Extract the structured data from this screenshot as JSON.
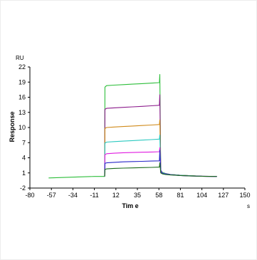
{
  "chart_data": {
    "type": "line",
    "y_unit_label": "RU",
    "ylabel": "Response",
    "xlabel": "Tim e",
    "x_unit_label": "s",
    "xlim": [
      -80,
      150
    ],
    "ylim": [
      -2,
      22
    ],
    "x_ticks": [
      -80,
      -57,
      -34,
      -11,
      12,
      35,
      58,
      81,
      104,
      127,
      150
    ],
    "y_ticks": [
      -2,
      1,
      4,
      7,
      10,
      13,
      16,
      19,
      22
    ],
    "grid": false,
    "series": [
      {
        "color": "#2dbe3a",
        "x": [
          -60,
          -11,
          0,
          0.3,
          2,
          10,
          20,
          30,
          40,
          50,
          58.5,
          59,
          60,
          61,
          62,
          65,
          70,
          80,
          90,
          104,
          120
        ],
        "y": [
          0,
          0.3,
          0.3,
          18.0,
          18.3,
          18.4,
          18.5,
          18.6,
          18.7,
          18.8,
          18.9,
          20.5,
          1.6,
          1.2,
          1.1,
          0.9,
          0.7,
          0.55,
          0.45,
          0.35,
          0.3
        ]
      },
      {
        "color": "#8b1a8b",
        "x": [
          0,
          0.3,
          2,
          10,
          20,
          30,
          40,
          50,
          58.5,
          59,
          60,
          61,
          62,
          65,
          70,
          80,
          90,
          104,
          120
        ],
        "y": [
          0.3,
          13.6,
          13.8,
          13.9,
          14.0,
          14.1,
          14.2,
          14.3,
          14.4,
          16.5,
          1.5,
          1.2,
          1.0,
          0.9,
          0.7,
          0.55,
          0.45,
          0.35,
          0.3
        ]
      },
      {
        "color": "#d08a1a",
        "x": [
          0,
          0.3,
          2,
          10,
          20,
          30,
          40,
          50,
          58.5,
          59,
          60,
          61,
          62,
          65,
          70,
          80,
          90,
          104,
          120
        ],
        "y": [
          0.3,
          9.8,
          10.0,
          10.1,
          10.2,
          10.3,
          10.4,
          10.5,
          10.6,
          11.5,
          1.4,
          1.1,
          1.0,
          0.85,
          0.7,
          0.55,
          0.45,
          0.35,
          0.3
        ]
      },
      {
        "color": "#2bc9c0",
        "x": [
          0,
          0.3,
          2,
          10,
          20,
          30,
          40,
          50,
          58.5,
          59,
          60,
          61,
          62,
          65,
          70,
          80,
          90,
          104,
          120
        ],
        "y": [
          0.3,
          6.9,
          7.1,
          7.2,
          7.3,
          7.4,
          7.5,
          7.6,
          7.7,
          8.5,
          1.3,
          1.1,
          1.0,
          0.85,
          0.7,
          0.55,
          0.45,
          0.35,
          0.3
        ]
      },
      {
        "color": "#e01be0",
        "x": [
          0,
          0.3,
          2,
          10,
          20,
          30,
          40,
          50,
          58.5,
          59,
          60,
          61,
          62,
          65,
          70,
          80,
          90,
          104,
          120
        ],
        "y": [
          0.3,
          4.6,
          4.8,
          4.9,
          5.0,
          5.05,
          5.1,
          5.15,
          5.2,
          6.0,
          1.2,
          1.0,
          0.9,
          0.8,
          0.65,
          0.5,
          0.42,
          0.35,
          0.3
        ]
      },
      {
        "color": "#2828c8",
        "x": [
          0,
          0.3,
          2,
          10,
          20,
          30,
          40,
          50,
          58.5,
          59,
          60,
          61,
          62,
          65,
          70,
          80,
          90,
          104,
          120
        ],
        "y": [
          0.3,
          2.9,
          3.0,
          3.1,
          3.2,
          3.25,
          3.3,
          3.35,
          3.4,
          5.5,
          1.5,
          1.1,
          0.9,
          0.8,
          0.65,
          0.5,
          0.42,
          0.35,
          0.3
        ]
      },
      {
        "color": "#1a6a1a",
        "x": [
          0,
          0.3,
          2,
          10,
          20,
          30,
          40,
          50,
          58.5,
          59,
          60,
          61,
          62,
          65,
          70,
          80,
          90,
          104,
          120
        ],
        "y": [
          0.3,
          1.7,
          1.8,
          1.9,
          1.95,
          2.0,
          2.05,
          2.1,
          2.15,
          3.0,
          1.0,
          0.9,
          0.8,
          0.7,
          0.6,
          0.5,
          0.42,
          0.35,
          0.3
        ]
      }
    ]
  }
}
